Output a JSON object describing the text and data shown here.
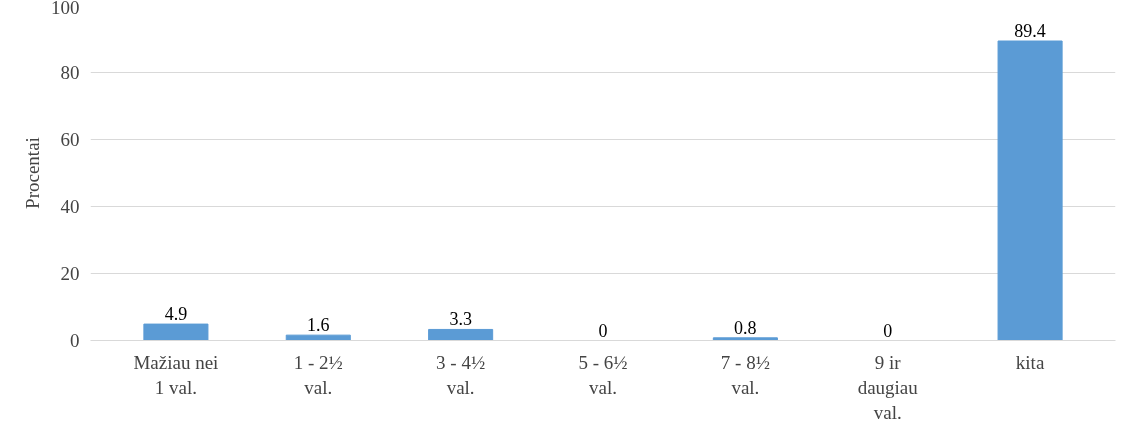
{
  "chart_data": {
    "type": "bar",
    "ylabel": "Procentai",
    "categories": [
      "Mažiau nei 1 val.",
      "1 - 2½ val.",
      "3 - 4½ val.",
      "5 - 6½ val.",
      "7 - 8½ val.",
      "9 ir daugiau val.",
      "kita"
    ],
    "values": [
      4.9,
      1.6,
      3.3,
      0,
      0.8,
      0,
      89.4
    ],
    "color": "#5b9bd5",
    "ylim": [
      0,
      100
    ],
    "yticks": [
      0,
      20,
      40,
      60,
      80,
      100
    ],
    "grid": "y",
    "data_labels": true
  }
}
